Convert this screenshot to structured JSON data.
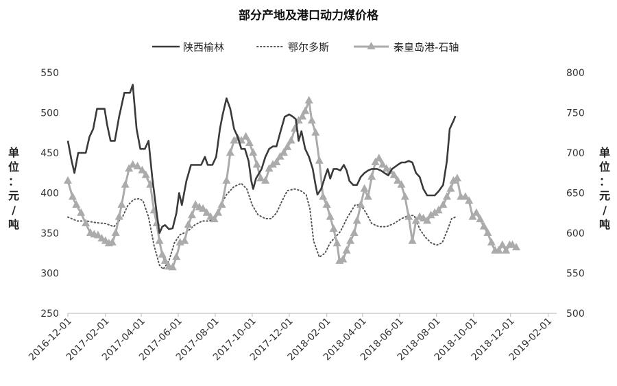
{
  "chart_data": {
    "type": "line",
    "title": "部分产地及港口动力煤价格",
    "left_axis": {
      "label": "单位：元/吨",
      "label_chars": [
        "单",
        "位",
        "：",
        "元",
        "/",
        "吨"
      ],
      "min": 250,
      "max": 550,
      "step": 50,
      "ticks": [
        "250",
        "300",
        "350",
        "400",
        "450",
        "500",
        "550"
      ]
    },
    "right_axis": {
      "label": "单位：元/吨",
      "label_chars": [
        "单",
        "位",
        "：",
        "元",
        "/",
        "吨"
      ],
      "min": 500,
      "max": 800,
      "step": 50,
      "ticks": [
        "500",
        "550",
        "600",
        "650",
        "700",
        "750",
        "800"
      ]
    },
    "x_axis": {
      "start": "2016-12-01",
      "end": "2019-02-15",
      "ticks": [
        "2016-12-01",
        "2017-02-01",
        "2017-04-01",
        "2017-06-01",
        "2017-08-01",
        "2017-10-01",
        "2017-12-01",
        "2018-02-01",
        "2018-04-01",
        "2018-06-01",
        "2018-08-01",
        "2018-10-01",
        "2018-12-01",
        "2019-02-01"
      ]
    },
    "legend": {
      "position": "top-center"
    },
    "grid": false,
    "series": [
      {
        "name": "陕西榆林",
        "axis": "left",
        "style": "solid",
        "color": "#3a3a3a",
        "marker": "none",
        "points": [
          [
            0,
            465
          ],
          [
            0.2,
            440
          ],
          [
            0.35,
            425
          ],
          [
            0.55,
            450
          ],
          [
            0.95,
            450
          ],
          [
            1.15,
            470
          ],
          [
            1.35,
            480
          ],
          [
            1.55,
            505
          ],
          [
            1.95,
            505
          ],
          [
            2.1,
            485
          ],
          [
            2.3,
            465
          ],
          [
            2.55,
            465
          ],
          [
            2.8,
            495
          ],
          [
            3.1,
            525
          ],
          [
            3.4,
            525
          ],
          [
            3.55,
            535
          ],
          [
            3.75,
            480
          ],
          [
            3.95,
            455
          ],
          [
            4.2,
            455
          ],
          [
            4.4,
            465
          ],
          [
            4.6,
            420
          ],
          [
            4.85,
            375
          ],
          [
            5.0,
            350
          ],
          [
            5.15,
            358
          ],
          [
            5.3,
            360
          ],
          [
            5.5,
            355
          ],
          [
            5.7,
            356
          ],
          [
            5.9,
            375
          ],
          [
            6.05,
            400
          ],
          [
            6.2,
            385
          ],
          [
            6.45,
            415
          ],
          [
            6.7,
            435
          ],
          [
            7.0,
            435
          ],
          [
            7.25,
            435
          ],
          [
            7.45,
            445
          ],
          [
            7.6,
            435
          ],
          [
            7.85,
            435
          ],
          [
            8.05,
            445
          ],
          [
            8.25,
            480
          ],
          [
            8.4,
            498
          ],
          [
            8.6,
            518
          ],
          [
            8.8,
            505
          ],
          [
            9.0,
            480
          ],
          [
            9.2,
            470
          ],
          [
            9.4,
            455
          ],
          [
            9.6,
            455
          ],
          [
            9.8,
            440
          ],
          [
            9.95,
            415
          ],
          [
            10.05,
            405
          ],
          [
            10.2,
            418
          ],
          [
            10.5,
            430
          ],
          [
            10.7,
            445
          ],
          [
            10.9,
            455
          ],
          [
            11.1,
            458
          ],
          [
            11.3,
            458
          ],
          [
            11.5,
            475
          ],
          [
            11.75,
            495
          ],
          [
            12.0,
            498
          ],
          [
            12.2,
            495
          ],
          [
            12.35,
            492
          ],
          [
            12.5,
            465
          ],
          [
            12.65,
            477
          ],
          [
            12.85,
            455
          ],
          [
            13.05,
            445
          ],
          [
            13.25,
            430
          ],
          [
            13.4,
            410
          ],
          [
            13.5,
            398
          ],
          [
            13.7,
            405
          ],
          [
            13.9,
            420
          ],
          [
            14.05,
            430
          ],
          [
            14.2,
            418
          ],
          [
            14.4,
            430
          ],
          [
            14.6,
            430
          ],
          [
            14.8,
            428
          ],
          [
            15.0,
            435
          ],
          [
            15.15,
            428
          ],
          [
            15.3,
            415
          ],
          [
            15.5,
            410
          ],
          [
            15.7,
            410
          ],
          [
            15.9,
            420
          ],
          [
            16.1,
            425
          ],
          [
            16.3,
            428
          ],
          [
            16.5,
            430
          ],
          [
            16.8,
            430
          ],
          [
            17.0,
            428
          ],
          [
            17.2,
            425
          ],
          [
            17.4,
            422
          ],
          [
            17.6,
            430
          ],
          [
            17.9,
            435
          ],
          [
            18.1,
            438
          ],
          [
            18.3,
            438
          ],
          [
            18.5,
            440
          ],
          [
            18.7,
            438
          ],
          [
            18.9,
            425
          ],
          [
            19.1,
            420
          ],
          [
            19.3,
            405
          ],
          [
            19.5,
            397
          ],
          [
            19.9,
            397
          ],
          [
            20.1,
            402
          ],
          [
            20.35,
            410
          ],
          [
            20.55,
            440
          ],
          [
            20.7,
            480
          ],
          [
            20.9,
            490
          ],
          [
            21.0,
            496
          ]
        ]
      },
      {
        "name": "鄂尔多斯",
        "axis": "left",
        "style": "dotted",
        "color": "#555555",
        "marker": "none",
        "points": [
          [
            0,
            370
          ],
          [
            0.5,
            365
          ],
          [
            1.0,
            365
          ],
          [
            1.5,
            363
          ],
          [
            2.0,
            362
          ],
          [
            2.5,
            358
          ],
          [
            3.0,
            370
          ],
          [
            3.3,
            385
          ],
          [
            3.6,
            392
          ],
          [
            3.9,
            393
          ],
          [
            4.1,
            390
          ],
          [
            4.4,
            370
          ],
          [
            4.7,
            335
          ],
          [
            5.0,
            310
          ],
          [
            5.2,
            305
          ],
          [
            5.5,
            315
          ],
          [
            5.8,
            338
          ],
          [
            6.1,
            348
          ],
          [
            6.5,
            352
          ],
          [
            6.9,
            360
          ],
          [
            7.3,
            365
          ],
          [
            7.7,
            365
          ],
          [
            8.0,
            370
          ],
          [
            8.3,
            385
          ],
          [
            8.6,
            398
          ],
          [
            9.0,
            408
          ],
          [
            9.4,
            412
          ],
          [
            9.7,
            405
          ],
          [
            10.0,
            385
          ],
          [
            10.3,
            373
          ],
          [
            10.7,
            368
          ],
          [
            11.0,
            368
          ],
          [
            11.3,
            375
          ],
          [
            11.6,
            390
          ],
          [
            11.9,
            403
          ],
          [
            12.3,
            405
          ],
          [
            12.6,
            403
          ],
          [
            12.9,
            398
          ],
          [
            13.1,
            380
          ],
          [
            13.3,
            340
          ],
          [
            13.6,
            320
          ],
          [
            13.9,
            325
          ],
          [
            14.2,
            338
          ],
          [
            14.5,
            345
          ],
          [
            14.8,
            352
          ],
          [
            15.2,
            370
          ],
          [
            15.6,
            385
          ],
          [
            15.9,
            385
          ],
          [
            16.2,
            375
          ],
          [
            16.5,
            362
          ],
          [
            16.9,
            358
          ],
          [
            17.3,
            358
          ],
          [
            17.7,
            362
          ],
          [
            18.1,
            368
          ],
          [
            18.5,
            372
          ],
          [
            18.8,
            372
          ],
          [
            19.1,
            355
          ],
          [
            19.4,
            345
          ],
          [
            19.7,
            338
          ],
          [
            20.0,
            335
          ],
          [
            20.3,
            338
          ],
          [
            20.6,
            355
          ],
          [
            20.8,
            368
          ],
          [
            21.0,
            370
          ]
        ]
      },
      {
        "name": "秦皇岛港-石轴",
        "axis": "right",
        "style": "solid",
        "color": "#ababab",
        "marker": "triangle",
        "points": [
          [
            0,
            665
          ],
          [
            0.25,
            645
          ],
          [
            0.45,
            635
          ],
          [
            0.7,
            625
          ],
          [
            0.95,
            612
          ],
          [
            1.2,
            600
          ],
          [
            1.4,
            598
          ],
          [
            1.6,
            597
          ],
          [
            1.8,
            593
          ],
          [
            2.0,
            590
          ],
          [
            2.2,
            587
          ],
          [
            2.4,
            588
          ],
          [
            2.6,
            600
          ],
          [
            2.8,
            620
          ],
          [
            2.95,
            635
          ],
          [
            3.15,
            660
          ],
          [
            3.35,
            680
          ],
          [
            3.55,
            685
          ],
          [
            3.8,
            683
          ],
          [
            4.05,
            678
          ],
          [
            4.25,
            672
          ],
          [
            4.5,
            660
          ],
          [
            4.7,
            628
          ],
          [
            4.85,
            612
          ],
          [
            5.0,
            590
          ],
          [
            5.15,
            573
          ],
          [
            5.3,
            565
          ],
          [
            5.5,
            558
          ],
          [
            5.7,
            557
          ],
          [
            5.9,
            570
          ],
          [
            6.1,
            588
          ],
          [
            6.35,
            590
          ],
          [
            6.55,
            610
          ],
          [
            6.75,
            622
          ],
          [
            6.95,
            635
          ],
          [
            7.15,
            632
          ],
          [
            7.35,
            630
          ],
          [
            7.55,
            625
          ],
          [
            7.75,
            620
          ],
          [
            7.95,
            617
          ],
          [
            8.15,
            625
          ],
          [
            8.35,
            635
          ],
          [
            8.6,
            665
          ],
          [
            8.8,
            700
          ],
          [
            9.0,
            715
          ],
          [
            9.2,
            718
          ],
          [
            9.4,
            715
          ],
          [
            9.65,
            720
          ],
          [
            9.85,
            712
          ],
          [
            10.05,
            700
          ],
          [
            10.25,
            685
          ],
          [
            10.45,
            668
          ],
          [
            10.7,
            665
          ],
          [
            10.9,
            680
          ],
          [
            11.1,
            685
          ],
          [
            11.3,
            688
          ],
          [
            11.5,
            695
          ],
          [
            11.7,
            700
          ],
          [
            11.9,
            707
          ],
          [
            12.1,
            715
          ],
          [
            12.3,
            730
          ],
          [
            12.5,
            740
          ],
          [
            12.7,
            745
          ],
          [
            12.85,
            752
          ],
          [
            13.05,
            765
          ],
          [
            13.2,
            740
          ],
          [
            13.4,
            725
          ],
          [
            13.6,
            690
          ],
          [
            13.8,
            645
          ],
          [
            14.0,
            635
          ],
          [
            14.2,
            620
          ],
          [
            14.4,
            605
          ],
          [
            14.6,
            587
          ],
          [
            14.75,
            565
          ],
          [
            14.95,
            567
          ],
          [
            15.15,
            578
          ],
          [
            15.35,
            590
          ],
          [
            15.55,
            600
          ],
          [
            15.7,
            615
          ],
          [
            15.9,
            635
          ],
          [
            16.1,
            655
          ],
          [
            16.3,
            645
          ],
          [
            16.5,
            670
          ],
          [
            16.7,
            688
          ],
          [
            16.9,
            693
          ],
          [
            17.1,
            685
          ],
          [
            17.3,
            680
          ],
          [
            17.5,
            677
          ],
          [
            17.7,
            672
          ],
          [
            17.9,
            665
          ],
          [
            18.1,
            660
          ],
          [
            18.3,
            645
          ],
          [
            18.5,
            620
          ],
          [
            18.7,
            590
          ],
          [
            18.9,
            615
          ],
          [
            19.1,
            620
          ],
          [
            19.3,
            618
          ],
          [
            19.5,
            615
          ],
          [
            19.7,
            622
          ],
          [
            19.9,
            625
          ],
          [
            20.1,
            628
          ],
          [
            20.35,
            635
          ],
          [
            20.55,
            645
          ],
          [
            20.75,
            655
          ],
          [
            20.9,
            665
          ],
          [
            21.1,
            668
          ],
          [
            21.3,
            645
          ],
          [
            21.55,
            645
          ],
          [
            21.75,
            640
          ],
          [
            21.95,
            620
          ],
          [
            22.15,
            625
          ],
          [
            22.35,
            617
          ],
          [
            22.55,
            608
          ],
          [
            22.75,
            600
          ],
          [
            22.95,
            588
          ],
          [
            23.15,
            578
          ],
          [
            23.35,
            578
          ],
          [
            23.55,
            585
          ],
          [
            23.75,
            578
          ],
          [
            23.95,
            585
          ],
          [
            24.1,
            585
          ],
          [
            24.3,
            582
          ]
        ]
      }
    ]
  }
}
